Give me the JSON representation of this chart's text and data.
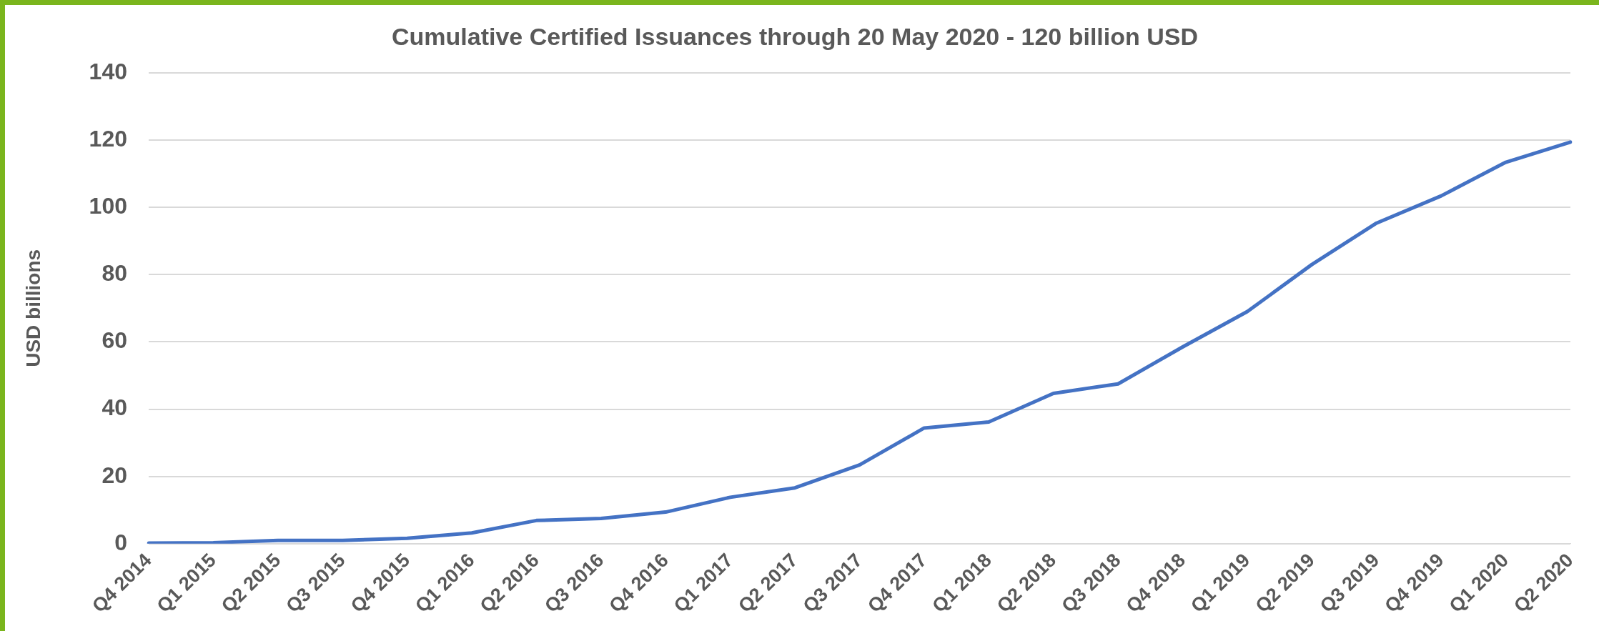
{
  "chart_data": {
    "type": "line",
    "title": "Cumulative Certified Issuances through 20 May 2020 - 120 billion USD",
    "ylabel": "USD billions",
    "categories": [
      "Q4 2014",
      "Q1 2015",
      "Q2 2015",
      "Q3 2015",
      "Q4 2015",
      "Q1 2016",
      "Q2 2016",
      "Q3 2016",
      "Q4 2016",
      "Q1 2017",
      "Q2 2017",
      "Q3 2017",
      "Q4 2017",
      "Q1 2018",
      "Q2 2018",
      "Q3 2018",
      "Q4 2018",
      "Q1 2019",
      "Q2 2019",
      "Q3 2019",
      "Q4 2019",
      "Q1 2020",
      "Q2 2020"
    ],
    "series": [
      {
        "color": "#4472c4",
        "values": [
          0.2,
          0.3,
          1,
          1,
          1.6,
          3.2,
          6.9,
          7.5,
          9.4,
          13.8,
          16.6,
          23.4,
          34.4,
          36.2,
          44.7,
          47.5,
          58.5,
          69,
          83,
          95.3,
          103.4,
          113.4,
          119.4
        ]
      }
    ],
    "ylim": [
      0,
      140
    ],
    "yticks": [
      0,
      20,
      40,
      60,
      80,
      100,
      120,
      140
    ],
    "grid": "y",
    "legend": false,
    "marker": "none",
    "line_style": "solid"
  }
}
